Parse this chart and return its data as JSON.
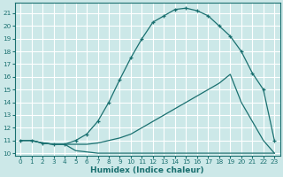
{
  "xlabel": "Humidex (Indice chaleur)",
  "ylabel": "",
  "bg_color": "#cce8e8",
  "grid_color": "#ffffff",
  "line_color": "#1a7070",
  "xlim": [
    -0.5,
    23.5
  ],
  "ylim": [
    9.8,
    21.8
  ],
  "xticks": [
    0,
    1,
    2,
    3,
    4,
    5,
    6,
    7,
    8,
    9,
    10,
    11,
    12,
    13,
    14,
    15,
    16,
    17,
    18,
    19,
    20,
    21,
    22,
    23
  ],
  "yticks": [
    10,
    11,
    12,
    13,
    14,
    15,
    16,
    17,
    18,
    19,
    20,
    21
  ],
  "line1_x": [
    0,
    1,
    2,
    3,
    4,
    5,
    6,
    7,
    8,
    9,
    10,
    11,
    12,
    13,
    14,
    15,
    16,
    17,
    18,
    19,
    20,
    21,
    22,
    23
  ],
  "line1_y": [
    11.0,
    11.0,
    10.8,
    10.7,
    10.7,
    11.0,
    11.5,
    12.5,
    14.0,
    15.8,
    17.5,
    19.0,
    20.3,
    20.8,
    21.3,
    21.4,
    21.2,
    20.8,
    20.0,
    19.2,
    18.0,
    16.3,
    15.0,
    11.0
  ],
  "line2_x": [
    0,
    1,
    2,
    3,
    4,
    5,
    6,
    7,
    8,
    9,
    10,
    11,
    12,
    13,
    14,
    15,
    16,
    17,
    18,
    19,
    20,
    21,
    22,
    23
  ],
  "line2_y": [
    11.0,
    11.0,
    10.8,
    10.7,
    10.7,
    10.7,
    10.7,
    10.8,
    11.0,
    11.2,
    11.5,
    12.0,
    12.5,
    13.0,
    13.5,
    14.0,
    14.5,
    15.0,
    15.5,
    16.2,
    14.0,
    12.5,
    11.0,
    10.0
  ],
  "line3_x": [
    0,
    1,
    2,
    3,
    4,
    5,
    6,
    7,
    8,
    9,
    10,
    11,
    12,
    13,
    14,
    15,
    16,
    17,
    18,
    19,
    20,
    21,
    22,
    23
  ],
  "line3_y": [
    11.0,
    11.0,
    10.8,
    10.7,
    10.7,
    10.2,
    10.1,
    10.0,
    10.0,
    10.0,
    10.0,
    10.0,
    10.0,
    10.0,
    10.0,
    10.0,
    10.0,
    10.0,
    10.0,
    10.0,
    10.0,
    10.0,
    10.0,
    10.0
  ]
}
